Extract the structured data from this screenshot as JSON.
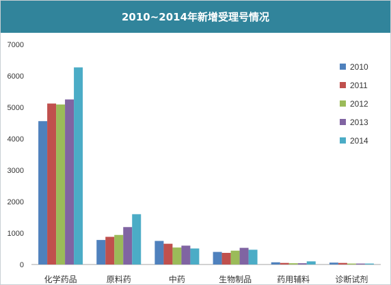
{
  "chart_data": {
    "type": "bar",
    "title": "2010~2014年新增受理号情况",
    "xlabel": "",
    "ylabel": "",
    "ylim": [
      0,
      7000
    ],
    "yticks": [
      0,
      1000,
      2000,
      3000,
      4000,
      5000,
      6000,
      7000
    ],
    "grid": false,
    "legend_position": "right",
    "categories": [
      "化学药品",
      "原料药",
      "中药",
      "生物制品",
      "药用辅料",
      "诊断试剂"
    ],
    "series": [
      {
        "name": "2010",
        "color": "#4f81bd",
        "values": [
          4560,
          780,
          750,
          400,
          70,
          60
        ]
      },
      {
        "name": "2011",
        "color": "#c0504d",
        "values": [
          5120,
          880,
          660,
          370,
          50,
          50
        ]
      },
      {
        "name": "2012",
        "color": "#9bbb59",
        "values": [
          5090,
          940,
          540,
          440,
          40,
          30
        ]
      },
      {
        "name": "2013",
        "color": "#8064a2",
        "values": [
          5250,
          1190,
          600,
          530,
          40,
          30
        ]
      },
      {
        "name": "2014",
        "color": "#4bacc6",
        "values": [
          6270,
          1600,
          510,
          470,
          100,
          30
        ]
      }
    ]
  }
}
